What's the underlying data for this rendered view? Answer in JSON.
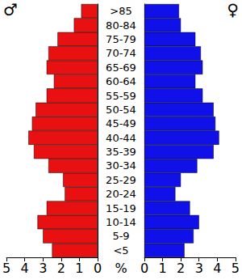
{
  "chart_data": {
    "type": "bar",
    "orientation": "horizontal",
    "xlabel": "%",
    "categories": [
      "<5",
      "5-9",
      "10-14",
      "15-19",
      "20-24",
      "25-29",
      "30-34",
      "35-39",
      "40-44",
      "45-49",
      "50-54",
      "55-59",
      "60-64",
      "65-69",
      "70-74",
      "75-79",
      "80-84",
      ">85"
    ],
    "series": [
      {
        "name": "♂",
        "color": "#e81010",
        "values": [
          2.5,
          3.0,
          3.3,
          2.8,
          1.8,
          1.9,
          2.7,
          3.5,
          3.8,
          3.6,
          3.4,
          2.8,
          2.4,
          2.8,
          2.7,
          2.2,
          1.3,
          0.9
        ]
      },
      {
        "name": "♀",
        "color": "#1010e8",
        "values": [
          2.2,
          2.7,
          3.0,
          2.5,
          1.7,
          2.0,
          2.9,
          3.8,
          4.1,
          3.9,
          3.8,
          3.2,
          2.8,
          3.2,
          3.1,
          2.8,
          2.0,
          1.9
        ]
      }
    ],
    "xlim": [
      0,
      5
    ],
    "xticks": [
      0,
      1,
      2,
      3,
      4,
      5
    ],
    "grid": false
  }
}
